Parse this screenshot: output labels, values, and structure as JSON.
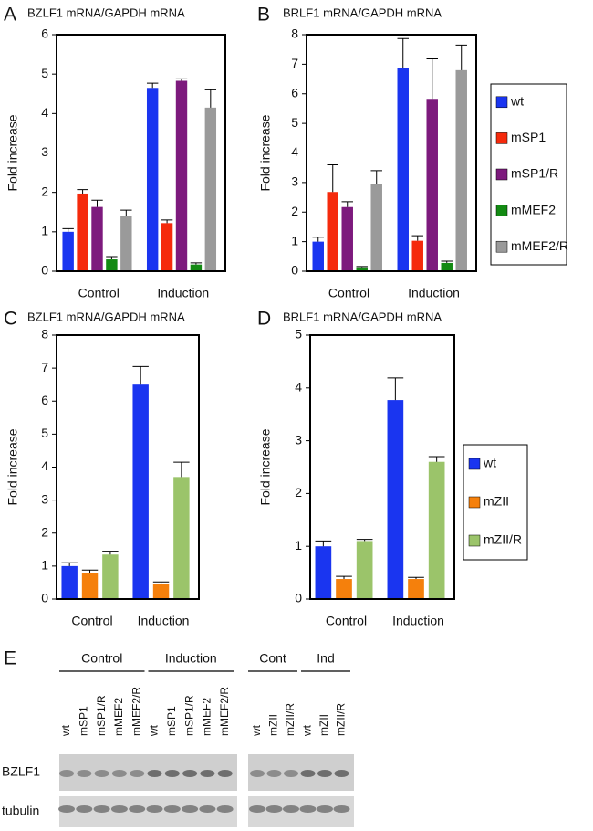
{
  "chart_data": [
    {
      "type": "bar",
      "panel_label": "A",
      "title": "BZLF1 mRNA/GAPDH mRNA",
      "ylabel": "Fold increase",
      "categories": [
        "Control",
        "Induction"
      ],
      "series": [
        {
          "color": "#1a35f0",
          "values": [
            1.0,
            4.65
          ],
          "errors": [
            0.08,
            0.12
          ]
        },
        {
          "color": "#f52a0c",
          "values": [
            1.97,
            1.22
          ],
          "errors": [
            0.1,
            0.08
          ]
        },
        {
          "color": "#7d1a7d",
          "values": [
            1.63,
            4.83
          ],
          "errors": [
            0.17,
            0.05
          ]
        },
        {
          "color": "#138a13",
          "values": [
            0.3,
            0.17
          ],
          "errors": [
            0.07,
            0.04
          ]
        },
        {
          "color": "#9a9a9a",
          "values": [
            1.4,
            4.15
          ],
          "errors": [
            0.15,
            0.45
          ]
        }
      ],
      "ylim": [
        0,
        6
      ],
      "yticks": [
        0,
        1,
        2,
        3,
        4,
        5,
        6
      ]
    },
    {
      "type": "bar",
      "panel_label": "B",
      "title": "BRLF1 mRNA/GAPDH mRNA",
      "ylabel": "Fold increase",
      "categories": [
        "Control",
        "Induction"
      ],
      "series": [
        {
          "name": "wt",
          "color": "#1a35f0",
          "values": [
            1.0,
            6.87
          ],
          "errors": [
            0.15,
            1.0
          ]
        },
        {
          "name": "mSP1",
          "color": "#f52a0c",
          "values": [
            2.68,
            1.03
          ],
          "errors": [
            0.92,
            0.17
          ]
        },
        {
          "name": "mSP1/R",
          "color": "#7d1a7d",
          "values": [
            2.17,
            5.83
          ],
          "errors": [
            0.18,
            1.35
          ]
        },
        {
          "name": "mMEF2",
          "color": "#138a13",
          "values": [
            0.13,
            0.28
          ],
          "errors": [
            0.03,
            0.06
          ]
        },
        {
          "name": "mMEF2/R",
          "color": "#9a9a9a",
          "values": [
            2.95,
            6.8
          ],
          "errors": [
            0.45,
            0.85
          ]
        }
      ],
      "ylim": [
        0,
        8
      ],
      "yticks": [
        0,
        1,
        2,
        3,
        4,
        5,
        6,
        7,
        8
      ]
    },
    {
      "type": "bar",
      "panel_label": "C",
      "title": "BZLF1 mRNA/GAPDH mRNA",
      "ylabel": "Fold increase",
      "categories": [
        "Control",
        "Induction"
      ],
      "series": [
        {
          "color": "#1a35f0",
          "values": [
            1.0,
            6.5
          ],
          "errors": [
            0.1,
            0.55
          ]
        },
        {
          "color": "#f5800c",
          "values": [
            0.8,
            0.45
          ],
          "errors": [
            0.08,
            0.07
          ]
        },
        {
          "color": "#9bc46a",
          "values": [
            1.35,
            3.7
          ],
          "errors": [
            0.1,
            0.45
          ]
        }
      ],
      "ylim": [
        0,
        8
      ],
      "yticks": [
        0,
        1,
        2,
        3,
        4,
        5,
        6,
        7,
        8
      ]
    },
    {
      "type": "bar",
      "panel_label": "D",
      "title": "BRLF1 mRNA/GAPDH mRNA",
      "ylabel": "Fold increase",
      "categories": [
        "Control",
        "Induction"
      ],
      "series": [
        {
          "name": "wt",
          "color": "#1a35f0",
          "values": [
            1.0,
            3.77
          ],
          "errors": [
            0.1,
            0.42
          ]
        },
        {
          "name": "mZII",
          "color": "#f5800c",
          "values": [
            0.38,
            0.38
          ],
          "errors": [
            0.05,
            0.03
          ]
        },
        {
          "name": "mZII/R",
          "color": "#9bc46a",
          "values": [
            1.1,
            2.6
          ],
          "errors": [
            0.03,
            0.1
          ]
        }
      ],
      "ylim": [
        0,
        5
      ],
      "yticks": [
        0,
        1,
        2,
        3,
        4,
        5
      ]
    }
  ],
  "blot": {
    "panel_label": "E",
    "rows": [
      "BZLF1",
      "tubulin"
    ],
    "strips": [
      {
        "groups": [
          "Control",
          "Induction"
        ],
        "lanes": [
          "wt",
          "mSP1",
          "mSP1/R",
          "mMEF2",
          "mMEF2/R",
          "wt",
          "mSP1",
          "mSP1/R",
          "mMEF2",
          "mMEF2/R"
        ]
      },
      {
        "groups": [
          "Cont",
          "Ind"
        ],
        "lanes": [
          "wt",
          "mZII",
          "mZII/R",
          "wt",
          "mZII",
          "mZII/R"
        ]
      }
    ]
  }
}
